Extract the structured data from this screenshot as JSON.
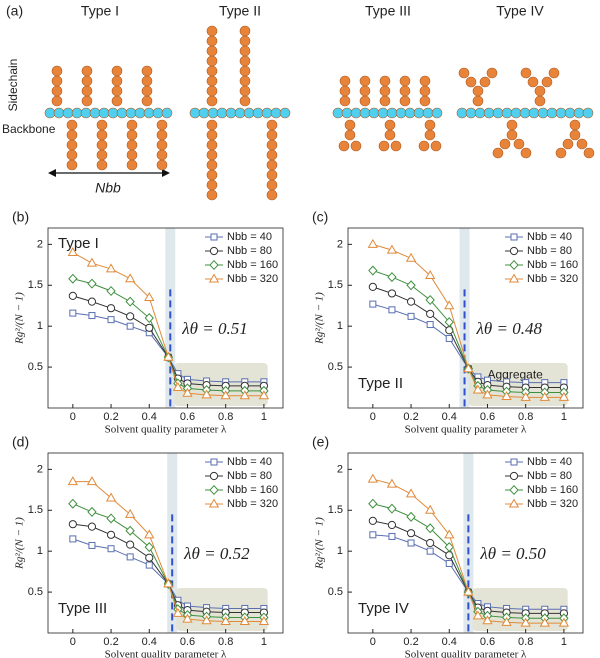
{
  "diagram": {
    "panel": "(a)",
    "types": [
      "Type I",
      "Type II",
      "Type III",
      "Type IV"
    ],
    "sidechain": "Sidechain",
    "backbone": "Backbone",
    "length": "Nbb"
  },
  "chart_data": [
    {
      "type": "line",
      "panel": "(b)",
      "type_label": "Type I",
      "type_label_corner": "top-left",
      "theta": 0.51,
      "annotation": "λθ = 0.51",
      "x_label": "Solvent quality parameter λ",
      "y_label": "Rg²/(N − 1)",
      "x": [
        0,
        0.1,
        0.2,
        0.3,
        0.4,
        0.5,
        0.55,
        0.6,
        0.7,
        0.8,
        0.9,
        1.0
      ],
      "xlim": [
        -0.13,
        1.1
      ],
      "ylim": [
        0,
        2.2
      ],
      "xticks": [
        0,
        0.2,
        0.4,
        0.6,
        0.8,
        1
      ],
      "yticks": [
        0.5,
        1,
        1.5,
        2
      ],
      "series": [
        {
          "name": "Nbb = 40",
          "color": "#5a6fb0",
          "marker": "square",
          "values": [
            1.16,
            1.13,
            1.08,
            1.0,
            0.92,
            0.62,
            0.42,
            0.35,
            0.33,
            0.32,
            0.32,
            0.32
          ]
        },
        {
          "name": "Nbb = 80",
          "color": "#333333",
          "marker": "circle",
          "values": [
            1.37,
            1.3,
            1.22,
            1.12,
            0.98,
            0.62,
            0.36,
            0.3,
            0.28,
            0.27,
            0.27,
            0.27
          ]
        },
        {
          "name": "Nbb = 160",
          "color": "#3f8f3f",
          "marker": "diamond",
          "values": [
            1.58,
            1.52,
            1.43,
            1.3,
            1.1,
            0.62,
            0.3,
            0.24,
            0.22,
            0.21,
            0.21,
            0.21
          ]
        },
        {
          "name": "Nbb = 320",
          "color": "#e08a3a",
          "marker": "triangle",
          "values": [
            1.9,
            1.77,
            1.7,
            1.58,
            1.35,
            0.62,
            0.25,
            0.18,
            0.16,
            0.15,
            0.15,
            0.15
          ]
        }
      ]
    },
    {
      "type": "line",
      "panel": "(c)",
      "type_label": "Type II",
      "type_label_corner": "bottom-left",
      "theta": 0.48,
      "annotation": "λθ = 0.48",
      "region_label": "Aggregate",
      "x_label": "Solvent quality parameter λ",
      "y_label": "Rg²/(N − 1)",
      "x": [
        0,
        0.1,
        0.2,
        0.3,
        0.4,
        0.5,
        0.55,
        0.6,
        0.7,
        0.8,
        0.9,
        1.0
      ],
      "xlim": [
        -0.13,
        1.1
      ],
      "ylim": [
        0,
        2.2
      ],
      "xticks": [
        0,
        0.2,
        0.4,
        0.6,
        0.8,
        1
      ],
      "yticks": [
        0.5,
        1,
        1.5,
        2
      ],
      "series": [
        {
          "name": "Nbb = 40",
          "color": "#5a6fb0",
          "marker": "square",
          "values": [
            1.27,
            1.2,
            1.12,
            1.02,
            0.85,
            0.48,
            0.38,
            0.34,
            0.32,
            0.31,
            0.31,
            0.31
          ]
        },
        {
          "name": "Nbb = 80",
          "color": "#333333",
          "marker": "circle",
          "values": [
            1.48,
            1.4,
            1.3,
            1.15,
            0.95,
            0.48,
            0.32,
            0.28,
            0.26,
            0.25,
            0.25,
            0.25
          ]
        },
        {
          "name": "Nbb = 160",
          "color": "#3f8f3f",
          "marker": "diamond",
          "values": [
            1.68,
            1.6,
            1.5,
            1.32,
            1.05,
            0.48,
            0.27,
            0.22,
            0.2,
            0.19,
            0.19,
            0.19
          ]
        },
        {
          "name": "Nbb = 320",
          "color": "#e08a3a",
          "marker": "triangle",
          "values": [
            2.0,
            1.93,
            1.83,
            1.62,
            1.25,
            0.48,
            0.22,
            0.16,
            0.14,
            0.13,
            0.13,
            0.13
          ]
        }
      ]
    },
    {
      "type": "line",
      "panel": "(d)",
      "type_label": "Type III",
      "type_label_corner": "bottom-left",
      "theta": 0.52,
      "annotation": "λθ = 0.52",
      "x_label": "Solvent quality parameter λ",
      "y_label": "Rg²/(N − 1)",
      "x": [
        0,
        0.1,
        0.2,
        0.3,
        0.4,
        0.5,
        0.55,
        0.6,
        0.7,
        0.8,
        0.9,
        1.0
      ],
      "xlim": [
        -0.13,
        1.1
      ],
      "ylim": [
        0,
        2.2
      ],
      "xticks": [
        0,
        0.2,
        0.4,
        0.6,
        0.8,
        1
      ],
      "yticks": [
        0.5,
        1,
        1.5,
        2
      ],
      "series": [
        {
          "name": "Nbb = 40",
          "color": "#5a6fb0",
          "marker": "square",
          "values": [
            1.15,
            1.07,
            1.03,
            0.93,
            0.83,
            0.6,
            0.4,
            0.33,
            0.31,
            0.3,
            0.3,
            0.3
          ]
        },
        {
          "name": "Nbb = 80",
          "color": "#333333",
          "marker": "circle",
          "values": [
            1.33,
            1.3,
            1.2,
            1.08,
            0.92,
            0.6,
            0.34,
            0.28,
            0.26,
            0.25,
            0.25,
            0.25
          ]
        },
        {
          "name": "Nbb = 160",
          "color": "#3f8f3f",
          "marker": "diamond",
          "values": [
            1.58,
            1.48,
            1.4,
            1.25,
            1.05,
            0.6,
            0.29,
            0.22,
            0.2,
            0.19,
            0.19,
            0.19
          ]
        },
        {
          "name": "Nbb = 320",
          "color": "#e08a3a",
          "marker": "triangle",
          "values": [
            1.85,
            1.85,
            1.65,
            1.45,
            1.2,
            0.6,
            0.24,
            0.17,
            0.15,
            0.14,
            0.14,
            0.14
          ]
        }
      ]
    },
    {
      "type": "line",
      "panel": "(e)",
      "type_label": "Type IV",
      "type_label_corner": "bottom-left",
      "theta": 0.5,
      "annotation": "λθ = 0.50",
      "x_label": "Solvent quality parameter λ",
      "y_label": "Rg²/(N − 1)",
      "x": [
        0,
        0.1,
        0.2,
        0.3,
        0.4,
        0.5,
        0.55,
        0.6,
        0.7,
        0.8,
        0.9,
        1.0
      ],
      "xlim": [
        -0.13,
        1.1
      ],
      "ylim": [
        0,
        2.2
      ],
      "xticks": [
        0,
        0.2,
        0.4,
        0.6,
        0.8,
        1
      ],
      "yticks": [
        0.5,
        1,
        1.5,
        2
      ],
      "series": [
        {
          "name": "Nbb = 40",
          "color": "#5a6fb0",
          "marker": "square",
          "values": [
            1.2,
            1.18,
            1.1,
            1.0,
            0.85,
            0.5,
            0.36,
            0.32,
            0.3,
            0.29,
            0.29,
            0.29
          ]
        },
        {
          "name": "Nbb = 80",
          "color": "#333333",
          "marker": "circle",
          "values": [
            1.37,
            1.32,
            1.22,
            1.1,
            0.95,
            0.5,
            0.31,
            0.27,
            0.25,
            0.24,
            0.24,
            0.24
          ]
        },
        {
          "name": "Nbb = 160",
          "color": "#3f8f3f",
          "marker": "diamond",
          "values": [
            1.58,
            1.52,
            1.42,
            1.28,
            1.05,
            0.5,
            0.26,
            0.21,
            0.19,
            0.18,
            0.18,
            0.18
          ]
        },
        {
          "name": "Nbb = 320",
          "color": "#e08a3a",
          "marker": "triangle",
          "values": [
            1.88,
            1.82,
            1.7,
            1.5,
            1.2,
            0.5,
            0.21,
            0.15,
            0.13,
            0.12,
            0.12,
            0.12
          ]
        }
      ]
    }
  ]
}
